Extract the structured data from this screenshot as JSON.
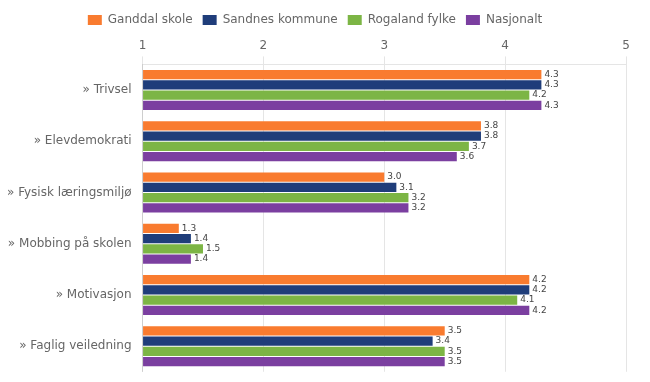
{
  "chart_data": {
    "type": "bar",
    "orientation": "horizontal",
    "categories": [
      "» Trivsel",
      "» Elevdemokrati",
      "» Fysisk læringsmiljø",
      "» Mobbing på skolen",
      "» Motivasjon",
      "» Faglig veiledning"
    ],
    "series": [
      {
        "name": "Ganddal skole",
        "color": "#F97B2F",
        "values": [
          4.3,
          3.8,
          3.0,
          1.3,
          4.2,
          3.5
        ]
      },
      {
        "name": "Sandnes kommune",
        "color": "#1F3D7A",
        "values": [
          4.3,
          3.8,
          3.1,
          1.4,
          4.2,
          3.4
        ]
      },
      {
        "name": "Rogaland fylke",
        "color": "#7CB545",
        "values": [
          4.2,
          3.7,
          3.2,
          1.5,
          4.1,
          3.5
        ]
      },
      {
        "name": "Nasjonalt",
        "color": "#7B3FA0",
        "values": [
          4.3,
          3.6,
          3.2,
          1.4,
          4.2,
          3.5
        ]
      }
    ],
    "xlim": [
      1,
      5
    ],
    "xticks": [
      1,
      2,
      3,
      4,
      5
    ],
    "grid": true,
    "data_labels": true,
    "legend": "top"
  }
}
